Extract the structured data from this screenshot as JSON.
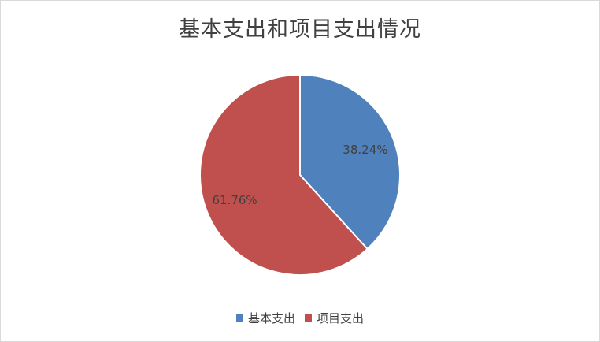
{
  "chart_data": {
    "type": "pie",
    "title": "基本支出和项目支出情况",
    "categories": [
      "基本支出",
      "项目支出"
    ],
    "values": [
      38.24,
      61.76
    ],
    "data_labels": [
      "38.24%",
      "61.76%"
    ],
    "colors": [
      "#4f81bd",
      "#c0504d"
    ],
    "legend_position": "bottom"
  }
}
